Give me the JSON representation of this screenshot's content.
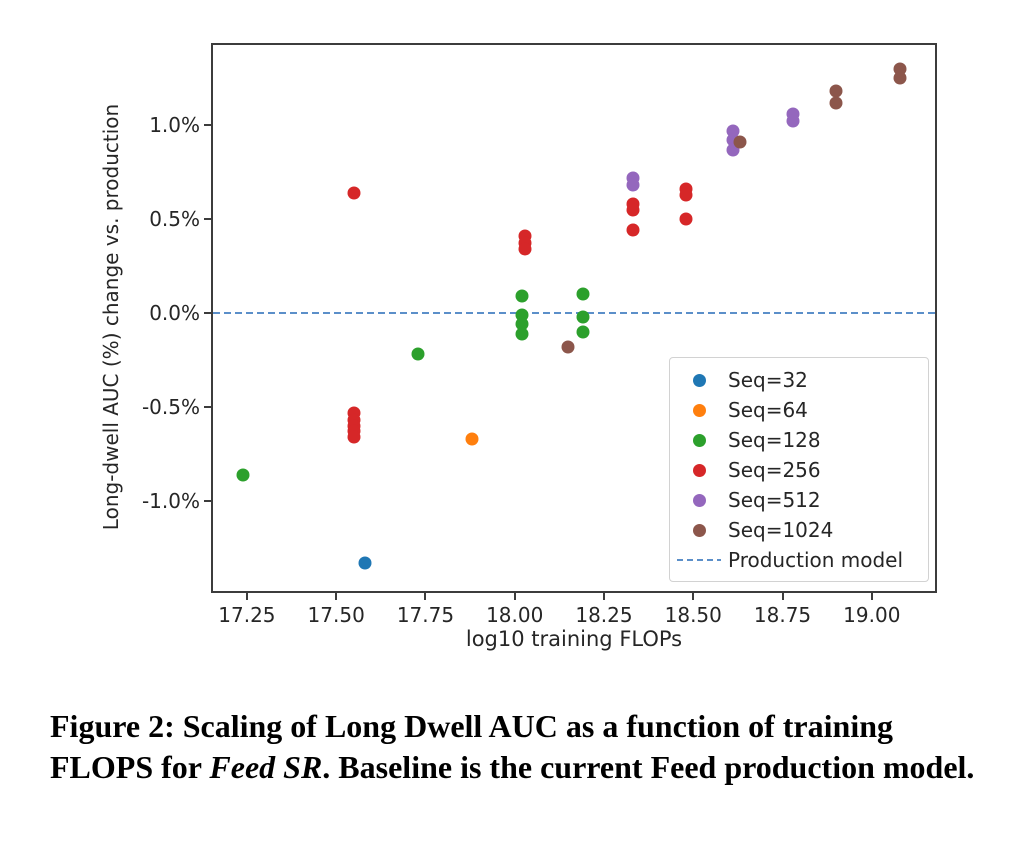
{
  "caption": {
    "prefix": "Figure 2: Scaling of Long Dwell AUC as a function of training FLOPS for ",
    "italic": "Feed SR",
    "suffix": ". Baseline is the current Feed production model."
  },
  "chart_data": {
    "type": "scatter",
    "xlabel": "log10 training FLOPs",
    "ylabel": "Long-dwell AUC (%) change vs. production",
    "xlim": [
      17.155,
      19.177
    ],
    "ylim": [
      -1.479,
      1.426
    ],
    "x_ticks": [
      17.25,
      17.5,
      17.75,
      18.0,
      18.25,
      18.5,
      18.75,
      19.0
    ],
    "x_tick_labels": [
      "17.25",
      "17.50",
      "17.75",
      "18.00",
      "18.25",
      "18.50",
      "18.75",
      "19.00"
    ],
    "y_ticks": [
      1.0,
      0.5,
      0.0,
      -0.5,
      -1.0
    ],
    "y_tick_labels": [
      "1.0%",
      "0.5%",
      "0.0%",
      "-0.5%",
      "-1.0%"
    ],
    "grid": false,
    "legend_position": "lower right",
    "reference_line": {
      "label": "Production model",
      "y": 0.0,
      "style": "dashed",
      "color": "#5b8fc9"
    },
    "series": [
      {
        "name": "Seq=32",
        "color": "#1f77b4",
        "points": [
          [
            17.58,
            -1.33
          ]
        ]
      },
      {
        "name": "Seq=64",
        "color": "#ff7f0e",
        "points": [
          [
            17.88,
            -0.67
          ]
        ]
      },
      {
        "name": "Seq=128",
        "color": "#2ca02c",
        "points": [
          [
            17.24,
            -0.86
          ],
          [
            17.73,
            -0.22
          ],
          [
            18.02,
            0.09
          ],
          [
            18.02,
            -0.01
          ],
          [
            18.02,
            -0.06
          ],
          [
            18.02,
            -0.11
          ],
          [
            18.19,
            0.1
          ],
          [
            18.19,
            -0.02
          ],
          [
            18.19,
            -0.1
          ]
        ]
      },
      {
        "name": "Seq=256",
        "color": "#d62728",
        "points": [
          [
            17.55,
            0.64
          ],
          [
            17.55,
            -0.53
          ],
          [
            17.55,
            -0.57
          ],
          [
            17.55,
            -0.6
          ],
          [
            17.55,
            -0.63
          ],
          [
            17.55,
            -0.66
          ],
          [
            18.03,
            0.41
          ],
          [
            18.03,
            0.37
          ],
          [
            18.03,
            0.34
          ],
          [
            18.33,
            0.58
          ],
          [
            18.33,
            0.55
          ],
          [
            18.33,
            0.44
          ],
          [
            18.48,
            0.66
          ],
          [
            18.48,
            0.63
          ],
          [
            18.48,
            0.5
          ]
        ]
      },
      {
        "name": "Seq=512",
        "color": "#9467bd",
        "points": [
          [
            18.33,
            0.72
          ],
          [
            18.33,
            0.68
          ],
          [
            18.61,
            0.97
          ],
          [
            18.61,
            0.92
          ],
          [
            18.61,
            0.87
          ],
          [
            18.78,
            1.06
          ],
          [
            18.78,
            1.02
          ]
        ]
      },
      {
        "name": "Seq=1024",
        "color": "#8c564b",
        "points": [
          [
            18.15,
            -0.18
          ],
          [
            18.63,
            0.91
          ],
          [
            18.9,
            1.18
          ],
          [
            18.9,
            1.12
          ],
          [
            19.08,
            1.3
          ],
          [
            19.08,
            1.25
          ]
        ]
      }
    ]
  }
}
